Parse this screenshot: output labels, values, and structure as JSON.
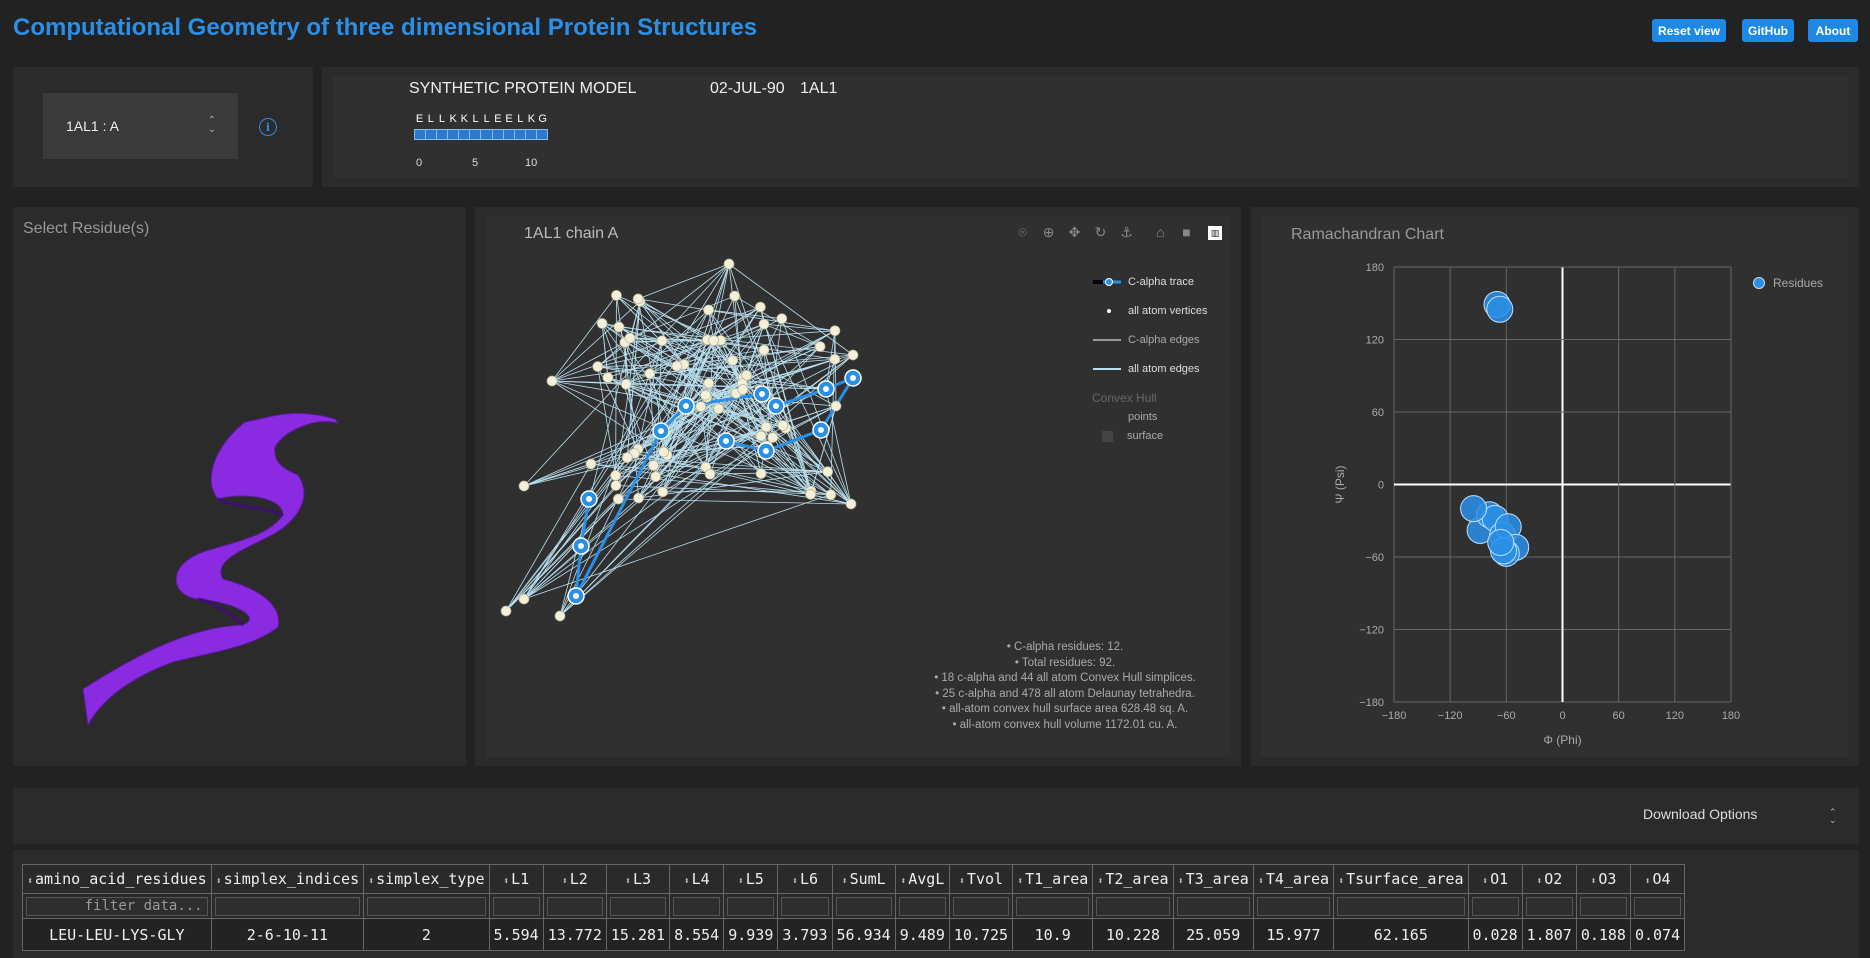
{
  "header": {
    "title": "Computational Geometry of three dimensional Protein Structures",
    "buttons": [
      "Reset view",
      "GitHub",
      "About"
    ]
  },
  "selector": {
    "value": "1AL1 : A",
    "icon": "info-icon"
  },
  "sequence": {
    "name": "SYNTHETIC PROTEIN MODEL",
    "date": "02-JUL-90",
    "id": "1AL1",
    "letters": [
      "E",
      "L",
      "L",
      "K",
      "K",
      "L",
      "L",
      "E",
      "E",
      "L",
      "K",
      "G"
    ],
    "ticks": [
      "0",
      "5",
      "10"
    ]
  },
  "residue_panel": {
    "title": "Select Residue(s)"
  },
  "structure_panel": {
    "title": "1AL1  chain A",
    "modebar_icons": [
      "camera-icon",
      "zoom-icon",
      "pan-icon",
      "orbit-icon",
      "turntable-icon",
      "home-icon",
      "camera-view-icon",
      "plotly-logo-icon"
    ],
    "legend": {
      "ca_trace": "C-alpha trace",
      "atom_vertices": "all atom vertices",
      "ca_edges": "C-alpha edges",
      "atom_edges": "all atom edges",
      "hull_title": "Convex Hull",
      "hull_points": "points",
      "hull_surface": "surface"
    },
    "stats": [
      "• C-alpha residues: 12.",
      "• Total residues: 92.",
      "• 18 c-alpha and 44 all atom Convex Hull simplices.",
      "• 25 c-alpha and 478 all atom Delaunay tetrahedra.",
      "• all-atom convex hull surface area 628.48 sq. A.",
      "• all-atom convex hull volume 1172.01 cu. A."
    ]
  },
  "chart_data": {
    "type": "scatter",
    "title": "Ramachandran Chart",
    "xlabel": "Φ (Phi)",
    "ylabel": "Ψ (Psi)",
    "xlim": [
      -180,
      180
    ],
    "ylim": [
      -180,
      180
    ],
    "xticks": [
      "−180",
      "−120",
      "−60",
      "0",
      "60",
      "120",
      "180"
    ],
    "yticks": [
      "180",
      "120",
      "60",
      "0",
      "−60",
      "−120",
      "−180"
    ],
    "legend": "top-right",
    "grid": true,
    "series": [
      {
        "name": "Residues",
        "color": "#2a8fe6",
        "points": [
          [
            -70,
            149
          ],
          [
            -67,
            145
          ],
          [
            -88,
            -38
          ],
          [
            -78,
            -25
          ],
          [
            -72,
            -28
          ],
          [
            -64,
            -42
          ],
          [
            -58,
            -35
          ],
          [
            -50,
            -52
          ],
          [
            -60,
            -57
          ],
          [
            -63,
            -55
          ],
          [
            -95,
            -20
          ],
          [
            -66,
            -48
          ]
        ]
      }
    ]
  },
  "download": {
    "label": "Download Options"
  },
  "table": {
    "columns": [
      "amino_acid_residues",
      "simplex_indices",
      "simplex_type",
      "L1",
      "L2",
      "L3",
      "L4",
      "L5",
      "L6",
      "SumL",
      "AvgL",
      "Tvol",
      "T1_area",
      "T2_area",
      "T3_area",
      "T4_area",
      "Tsurface_area",
      "O1",
      "O2",
      "O3",
      "O4"
    ],
    "filter_placeholder": "filter data...",
    "rows": [
      [
        "LEU-LEU-LYS-GLY",
        "2-6-10-11",
        "2",
        "5.594",
        "13.772",
        "15.281",
        "8.554",
        "9.939",
        "3.793",
        "56.934",
        "9.489",
        "10.725",
        "10.9",
        "10.228",
        "25.059",
        "15.977",
        "62.165",
        "0.028",
        "1.807",
        "0.188",
        "0.074"
      ]
    ]
  },
  "colors": {
    "accent": "#2a8fe6",
    "helix": "#8a2be2",
    "node": "#f3efd9",
    "edge": "#b9dff0"
  }
}
